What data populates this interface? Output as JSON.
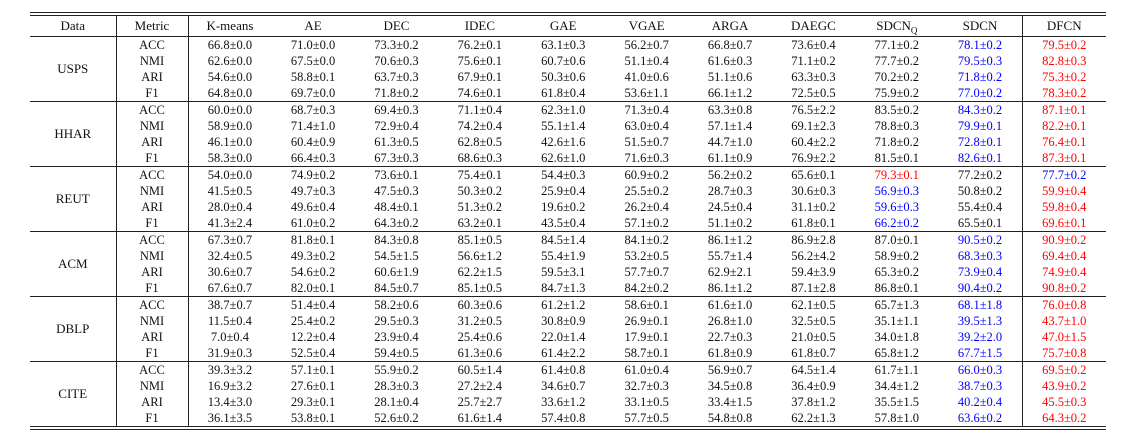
{
  "table": {
    "colors": {
      "best": "#ff0000",
      "second": "#0000ff",
      "text": "#111111"
    },
    "columns": [
      {
        "label": "Data"
      },
      {
        "label": "Metric"
      },
      {
        "label": "K-means"
      },
      {
        "label": "AE"
      },
      {
        "label": "DEC"
      },
      {
        "label": "IDEC"
      },
      {
        "label": "GAE"
      },
      {
        "label": "VGAE"
      },
      {
        "label": "ARGA"
      },
      {
        "label": "DAEGC"
      },
      {
        "label": "SDCN",
        "sub": "Q"
      },
      {
        "label": "SDCN"
      },
      {
        "label": "DFCN"
      }
    ],
    "groups": [
      {
        "dataset": "USPS",
        "rows": [
          {
            "metric": "ACC",
            "values": [
              "66.8±0.0",
              "71.0±0.0",
              "73.3±0.2",
              "76.2±0.1",
              "63.1±0.3",
              "56.2±0.7",
              "66.8±0.7",
              "73.6±0.4",
              "77.1±0.2",
              "78.1±0.2",
              "79.5±0.2"
            ],
            "second_idx": 9,
            "best_idx": 10
          },
          {
            "metric": "NMI",
            "values": [
              "62.6±0.0",
              "67.5±0.0",
              "70.6±0.3",
              "75.6±0.1",
              "60.7±0.6",
              "51.1±0.4",
              "61.6±0.3",
              "71.1±0.2",
              "77.7±0.2",
              "79.5±0.3",
              "82.8±0.3"
            ],
            "second_idx": 9,
            "best_idx": 10
          },
          {
            "metric": "ARI",
            "values": [
              "54.6±0.0",
              "58.8±0.1",
              "63.7±0.3",
              "67.9±0.1",
              "50.3±0.6",
              "41.0±0.6",
              "51.1±0.6",
              "63.3±0.3",
              "70.2±0.2",
              "71.8±0.2",
              "75.3±0.2"
            ],
            "second_idx": 9,
            "best_idx": 10
          },
          {
            "metric": "F1",
            "values": [
              "64.8±0.0",
              "69.7±0.0",
              "71.8±0.2",
              "74.6±0.1",
              "61.8±0.4",
              "53.6±1.1",
              "66.1±1.2",
              "72.5±0.5",
              "75.9±0.2",
              "77.0±0.2",
              "78.3±0.2"
            ],
            "second_idx": 9,
            "best_idx": 10
          }
        ]
      },
      {
        "dataset": "HHAR",
        "rows": [
          {
            "metric": "ACC",
            "values": [
              "60.0±0.0",
              "68.7±0.3",
              "69.4±0.3",
              "71.1±0.4",
              "62.3±1.0",
              "71.3±0.4",
              "63.3±0.8",
              "76.5±2.2",
              "83.5±0.2",
              "84.3±0.2",
              "87.1±0.1"
            ],
            "second_idx": 9,
            "best_idx": 10
          },
          {
            "metric": "NMI",
            "values": [
              "58.9±0.0",
              "71.4±1.0",
              "72.9±0.4",
              "74.2±0.4",
              "55.1±1.4",
              "63.0±0.4",
              "57.1±1.4",
              "69.1±2.3",
              "78.8±0.3",
              "79.9±0.1",
              "82.2±0.1"
            ],
            "second_idx": 9,
            "best_idx": 10
          },
          {
            "metric": "ARI",
            "values": [
              "46.1±0.0",
              "60.4±0.9",
              "61.3±0.5",
              "62.8±0.5",
              "42.6±1.6",
              "51.5±0.7",
              "44.7±1.0",
              "60.4±2.2",
              "71.8±0.2",
              "72.8±0.1",
              "76.4±0.1"
            ],
            "second_idx": 9,
            "best_idx": 10
          },
          {
            "metric": "F1",
            "values": [
              "58.3±0.0",
              "66.4±0.3",
              "67.3±0.3",
              "68.6±0.3",
              "62.6±1.0",
              "71.6±0.3",
              "61.1±0.9",
              "76.9±2.2",
              "81.5±0.1",
              "82.6±0.1",
              "87.3±0.1"
            ],
            "second_idx": 9,
            "best_idx": 10
          }
        ]
      },
      {
        "dataset": "REUT",
        "rows": [
          {
            "metric": "ACC",
            "values": [
              "54.0±0.0",
              "74.9±0.2",
              "73.6±0.1",
              "75.4±0.1",
              "54.4±0.3",
              "60.9±0.2",
              "56.2±0.2",
              "65.6±0.1",
              "79.3±0.1",
              "77.2±0.2",
              "77.7±0.2"
            ],
            "second_idx": 10,
            "best_idx": 8
          },
          {
            "metric": "NMI",
            "values": [
              "41.5±0.5",
              "49.7±0.3",
              "47.5±0.3",
              "50.3±0.2",
              "25.9±0.4",
              "25.5±0.2",
              "28.7±0.3",
              "30.6±0.3",
              "56.9±0.3",
              "50.8±0.2",
              "59.9±0.4"
            ],
            "second_idx": 8,
            "best_idx": 10
          },
          {
            "metric": "ARI",
            "values": [
              "28.0±0.4",
              "49.6±0.4",
              "48.4±0.1",
              "51.3±0.2",
              "19.6±0.2",
              "26.2±0.4",
              "24.5±0.4",
              "31.1±0.2",
              "59.6±0.3",
              "55.4±0.4",
              "59.8±0.4"
            ],
            "second_idx": 8,
            "best_idx": 10
          },
          {
            "metric": "F1",
            "values": [
              "41.3±2.4",
              "61.0±0.2",
              "64.3±0.2",
              "63.2±0.1",
              "43.5±0.4",
              "57.1±0.2",
              "51.1±0.2",
              "61.8±0.1",
              "66.2±0.2",
              "65.5±0.1",
              "69.6±0.1"
            ],
            "second_idx": 8,
            "best_idx": 10
          }
        ]
      },
      {
        "dataset": "ACM",
        "rows": [
          {
            "metric": "ACC",
            "values": [
              "67.3±0.7",
              "81.8±0.1",
              "84.3±0.8",
              "85.1±0.5",
              "84.5±1.4",
              "84.1±0.2",
              "86.1±1.2",
              "86.9±2.8",
              "87.0±0.1",
              "90.5±0.2",
              "90.9±0.2"
            ],
            "second_idx": 9,
            "best_idx": 10
          },
          {
            "metric": "NMI",
            "values": [
              "32.4±0.5",
              "49.3±0.2",
              "54.5±1.5",
              "56.6±1.2",
              "55.4±1.9",
              "53.2±0.5",
              "55.7±1.4",
              "56.2±4.2",
              "58.9±0.2",
              "68.3±0.3",
              "69.4±0.4"
            ],
            "second_idx": 9,
            "best_idx": 10
          },
          {
            "metric": "ARI",
            "values": [
              "30.6±0.7",
              "54.6±0.2",
              "60.6±1.9",
              "62.2±1.5",
              "59.5±3.1",
              "57.7±0.7",
              "62.9±2.1",
              "59.4±3.9",
              "65.3±0.2",
              "73.9±0.4",
              "74.9±0.4"
            ],
            "second_idx": 9,
            "best_idx": 10
          },
          {
            "metric": "F1",
            "values": [
              "67.6±0.7",
              "82.0±0.1",
              "84.5±0.7",
              "85.1±0.5",
              "84.7±1.3",
              "84.2±0.2",
              "86.1±1.2",
              "87.1±2.8",
              "86.8±0.1",
              "90.4±0.2",
              "90.8±0.2"
            ],
            "second_idx": 9,
            "best_idx": 10
          }
        ]
      },
      {
        "dataset": "DBLP",
        "rows": [
          {
            "metric": "ACC",
            "values": [
              "38.7±0.7",
              "51.4±0.4",
              "58.2±0.6",
              "60.3±0.6",
              "61.2±1.2",
              "58.6±0.1",
              "61.6±1.0",
              "62.1±0.5",
              "65.7±1.3",
              "68.1±1.8",
              "76.0±0.8"
            ],
            "second_idx": 9,
            "best_idx": 10
          },
          {
            "metric": "NMI",
            "values": [
              "11.5±0.4",
              "25.4±0.2",
              "29.5±0.3",
              "31.2±0.5",
              "30.8±0.9",
              "26.9±0.1",
              "26.8±1.0",
              "32.5±0.5",
              "35.1±1.1",
              "39.5±1.3",
              "43.7±1.0"
            ],
            "second_idx": 9,
            "best_idx": 10
          },
          {
            "metric": "ARI",
            "values": [
              "7.0±0.4",
              "12.2±0.4",
              "23.9±0.4",
              "25.4±0.6",
              "22.0±1.4",
              "17.9±0.1",
              "22.7±0.3",
              "21.0±0.5",
              "34.0±1.8",
              "39.2±2.0",
              "47.0±1.5"
            ],
            "second_idx": 9,
            "best_idx": 10
          },
          {
            "metric": "F1",
            "values": [
              "31.9±0.3",
              "52.5±0.4",
              "59.4±0.5",
              "61.3±0.6",
              "61.4±2.2",
              "58.7±0.1",
              "61.8±0.9",
              "61.8±0.7",
              "65.8±1.2",
              "67.7±1.5",
              "75.7±0.8"
            ],
            "second_idx": 9,
            "best_idx": 10
          }
        ]
      },
      {
        "dataset": "CITE",
        "rows": [
          {
            "metric": "ACC",
            "values": [
              "39.3±3.2",
              "57.1±0.1",
              "55.9±0.2",
              "60.5±1.4",
              "61.4±0.8",
              "61.0±0.4",
              "56.9±0.7",
              "64.5±1.4",
              "61.7±1.1",
              "66.0±0.3",
              "69.5±0.2"
            ],
            "second_idx": 9,
            "best_idx": 10
          },
          {
            "metric": "NMI",
            "values": [
              "16.9±3.2",
              "27.6±0.1",
              "28.3±0.3",
              "27.2±2.4",
              "34.6±0.7",
              "32.7±0.3",
              "34.5±0.8",
              "36.4±0.9",
              "34.4±1.2",
              "38.7±0.3",
              "43.9±0.2"
            ],
            "second_idx": 9,
            "best_idx": 10
          },
          {
            "metric": "ARI",
            "values": [
              "13.4±3.0",
              "29.3±0.1",
              "28.1±0.4",
              "25.7±2.7",
              "33.6±1.2",
              "33.1±0.5",
              "33.4±1.5",
              "37.8±1.2",
              "35.5±1.5",
              "40.2±0.4",
              "45.5±0.3"
            ],
            "second_idx": 9,
            "best_idx": 10
          },
          {
            "metric": "F1",
            "values": [
              "36.1±3.5",
              "53.8±0.1",
              "52.6±0.2",
              "61.6±1.4",
              "57.4±0.8",
              "57.7±0.5",
              "54.8±0.8",
              "62.2±1.3",
              "57.8±1.0",
              "63.6±0.2",
              "64.3±0.2"
            ],
            "second_idx": 9,
            "best_idx": 10
          }
        ]
      }
    ]
  }
}
